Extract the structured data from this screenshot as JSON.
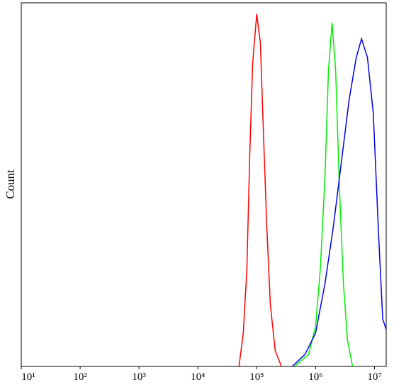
{
  "chart_data": {
    "type": "line",
    "y_label": "Count",
    "log_x": true,
    "xlim": [
      10,
      15800000
    ],
    "ylim": [
      0,
      100
    ],
    "xticks": [
      {
        "value": 10,
        "label": "10¹"
      },
      {
        "value": 100,
        "label": "10²"
      },
      {
        "value": 1000,
        "label": "10³"
      },
      {
        "value": 10000,
        "label": "10⁴"
      },
      {
        "value": 100000,
        "label": "10⁵"
      },
      {
        "value": 1000000,
        "label": "10⁶"
      },
      {
        "value": 10000000,
        "label": "10⁷"
      }
    ],
    "series": [
      {
        "color": "#ff0000",
        "x": [
          50000,
          59000,
          68000,
          76000,
          85000,
          100000,
          115000,
          129000,
          148000,
          170000,
          206000,
          263000
        ],
        "values": [
          0,
          9.2,
          26.7,
          57.9,
          83.2,
          96.9,
          89.1,
          65.7,
          38.4,
          17.0,
          4.3,
          0
        ]
      },
      {
        "color": "#00ee00",
        "x": [
          437000,
          760000,
          1000000,
          1200000,
          1440000,
          1650000,
          1900000,
          2190000,
          2520000,
          2960000,
          3480000,
          4240000
        ],
        "values": [
          0,
          3.3,
          11.1,
          26.7,
          52.0,
          81.3,
          94.5,
          81.3,
          50.1,
          22.8,
          7.2,
          0
        ]
      },
      {
        "color": "#0000ee",
        "x": [
          400000,
          660000,
          1000000,
          1440000,
          2000000,
          2820000,
          3720000,
          4900000,
          6030000,
          7590000,
          9550000,
          11700000,
          13800000,
          15800000
        ],
        "values": [
          0,
          3.3,
          9.2,
          22.8,
          38.4,
          57.9,
          73.5,
          85.0,
          90.1,
          85.0,
          69.6,
          36.5,
          13.1,
          10.1
        ]
      }
    ]
  }
}
